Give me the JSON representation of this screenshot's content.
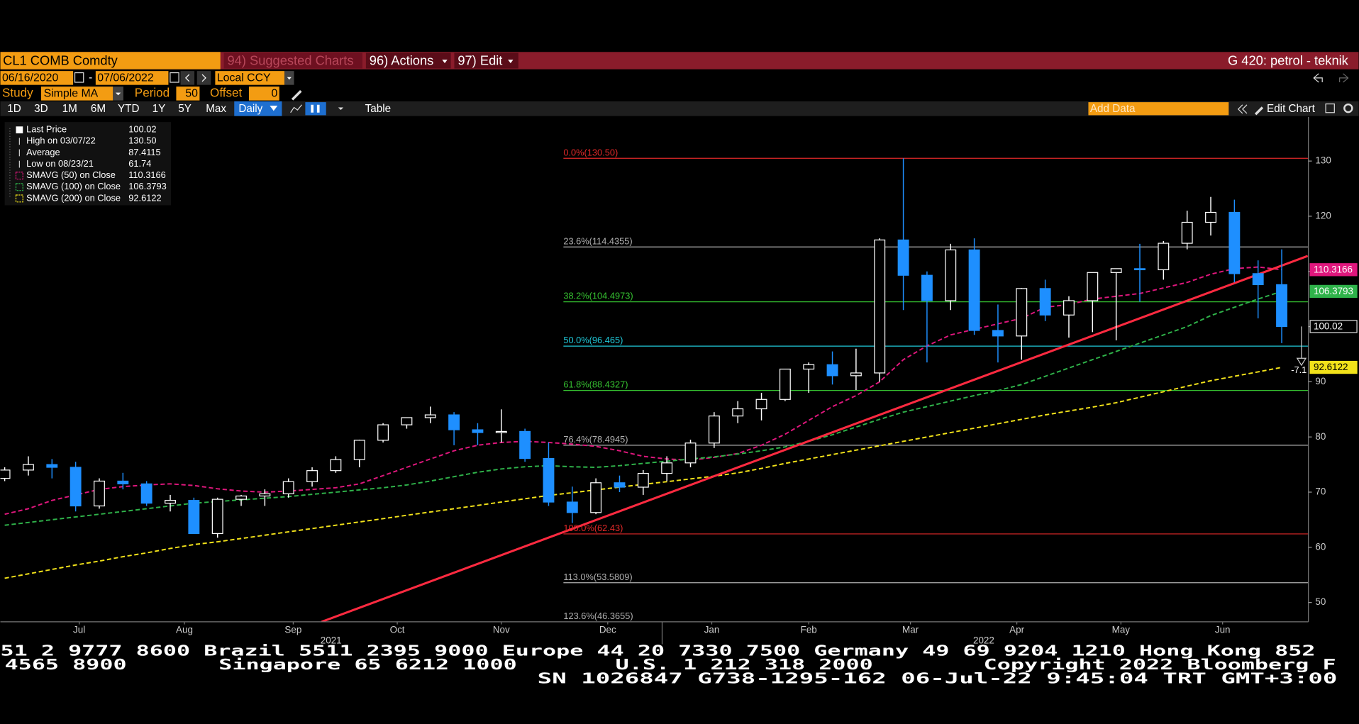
{
  "toolbar": {
    "security": "CL1 COMB Comdty",
    "suggested": "94) Suggested Charts",
    "actions": "96) Actions",
    "edit": "97) Edit",
    "screen": "G 420: petrol - teknik"
  },
  "controls": {
    "start_date": "06/16/2020",
    "date_separator": "-",
    "end_date": "07/06/2022",
    "currency": "Local CCY",
    "study_label": "Study",
    "study": "Simple MA",
    "period_label": "Period",
    "period": "50",
    "offset_label": "Offset",
    "offset": "0"
  },
  "ranges": [
    "1D",
    "3D",
    "1M",
    "6M",
    "YTD",
    "1Y",
    "5Y",
    "Max"
  ],
  "frequency": "Daily",
  "table": "Table",
  "add_data": "Add Data",
  "edit_chart": "Edit Chart",
  "chart_data": {
    "type": "candlestick",
    "categories": [
      null,
      null,
      null,
      null,
      null,
      null,
      null,
      null,
      null,
      null,
      null,
      null,
      null,
      null,
      null,
      null,
      null,
      null,
      null,
      null,
      null,
      null,
      null,
      null,
      null,
      null,
      null,
      null,
      null,
      null,
      null,
      null,
      null,
      null,
      null,
      null,
      null,
      null,
      null,
      null,
      null,
      null,
      null,
      null,
      null,
      null,
      null,
      null,
      null,
      null,
      null,
      null,
      null,
      null,
      null
    ],
    "open": [
      72.5,
      74,
      75,
      74.5,
      67.5,
      72,
      71.5,
      68,
      68.5,
      62.5,
      68.7,
      69.3,
      69.7,
      71.9,
      73.9,
      75.9,
      79.4,
      82.2,
      83.5,
      84,
      81.3,
      80.8,
      81,
      76.1,
      68.2,
      66.3,
      71.7,
      70.9,
      73.4,
      75.3,
      78.9,
      83.8,
      85.1,
      86.8,
      92.3,
      93.1,
      91.1,
      91.6,
      115.7,
      109.3,
      104.7,
      113.9,
      99.3,
      98.3,
      106.9,
      102.1,
      104.7,
      109.8,
      110.5,
      110.3,
      115.1,
      118.9,
      120.7,
      109.6,
      107.6
    ],
    "high": [
      74.5,
      76.5,
      76,
      75.5,
      72.5,
      73.5,
      72,
      69.5,
      69,
      69,
      69.5,
      70.5,
      72.5,
      74.5,
      76.5,
      79.5,
      82.5,
      83.5,
      85.5,
      84.5,
      82.5,
      85,
      81.5,
      79,
      71,
      72.5,
      73,
      74,
      76.5,
      79.5,
      84.5,
      86.5,
      88,
      92,
      93.5,
      95.5,
      96,
      116,
      130.5,
      110,
      115,
      116,
      104,
      107,
      108.5,
      105.5,
      109,
      110.5,
      115,
      115.5,
      121,
      123.5,
      123,
      112,
      114
    ],
    "low": [
      72,
      73,
      72.5,
      66.5,
      67,
      70.5,
      67.5,
      66.5,
      62.5,
      61.74,
      67.5,
      67.5,
      69,
      71,
      73.5,
      74.5,
      79,
      81.5,
      82.5,
      78.5,
      78.5,
      79,
      75.5,
      67.5,
      64.4,
      66,
      70,
      69.5,
      72,
      74.5,
      78,
      82.5,
      83,
      86.5,
      88,
      89.5,
      88.5,
      90,
      103,
      93.5,
      103,
      98.5,
      93.5,
      94,
      101,
      98,
      99,
      97.5,
      104.5,
      108.5,
      114,
      116.5,
      108,
      101.5,
      97
    ],
    "close": [
      74,
      75,
      74.5,
      67.5,
      72,
      71.5,
      68,
      68.5,
      62.5,
      68.7,
      69.3,
      69.7,
      71.9,
      73.9,
      75.9,
      79.4,
      82.2,
      83.5,
      84,
      81.3,
      80.8,
      81,
      76.1,
      68.2,
      66.3,
      71.7,
      70.9,
      73.4,
      75.3,
      78.9,
      83.8,
      85.1,
      86.8,
      92.3,
      93.1,
      91.1,
      91.6,
      115.7,
      109.3,
      104.7,
      113.9,
      99.3,
      98.3,
      106.9,
      102.1,
      104.7,
      109.8,
      110.5,
      110.3,
      115.1,
      118.9,
      120.7,
      109.6,
      107.6,
      100.02
    ],
    "up_color": "#ffffff",
    "down_color": "#1e8fff",
    "series": [
      {
        "name": "SMAVG (50)  on Close",
        "color": "#e0177d",
        "tag_text": "#ffffff",
        "values": [
          66,
          67,
          68.5,
          69.5,
          70.5,
          71,
          71.3,
          71.5,
          71.2,
          70.6,
          70.2,
          70,
          70.2,
          70.5,
          70.8,
          71.5,
          73,
          74.5,
          76,
          77.5,
          78.5,
          79,
          79.2,
          79,
          78.7,
          78.3,
          77.5,
          76.5,
          76,
          75.8,
          76.3,
          77,
          78.5,
          80.5,
          83,
          85.5,
          87.5,
          90,
          94,
          96.5,
          98.5,
          99.5,
          100.5,
          101.5,
          103.5,
          104,
          105,
          105.5,
          106,
          107,
          108,
          109.5,
          110.5,
          110.8,
          110.3166
        ]
      },
      {
        "name": "SMAVG (100)  on Close",
        "color": "#2fb34a",
        "tag_text": "#ffffff",
        "values": [
          64,
          64.5,
          65,
          65.5,
          66,
          66.5,
          67,
          67.5,
          68,
          68.3,
          68.6,
          68.9,
          69.2,
          69.6,
          70,
          70.4,
          70.8,
          71.3,
          72,
          72.8,
          73.6,
          74.2,
          74.6,
          74.8,
          74.6,
          74.5,
          74.8,
          75.2,
          75.6,
          76,
          76.4,
          76.9,
          77.5,
          78.2,
          79.2,
          80.4,
          81.8,
          83.2,
          84.5,
          85.5,
          86.5,
          87.5,
          88.4,
          89.5,
          91,
          92.5,
          94,
          95.5,
          97,
          98.5,
          100,
          102,
          103.5,
          105,
          106.3793
        ]
      },
      {
        "name": "SMAVG (200)  on Close",
        "color": "#f2e21a",
        "tag_text": "#000000",
        "values": [
          54.4,
          55.2,
          56,
          56.8,
          57.5,
          58.3,
          59,
          59.8,
          60.5,
          61,
          61.6,
          62.2,
          62.8,
          63.4,
          64,
          64.6,
          65.2,
          65.8,
          66.4,
          67,
          67.6,
          68.2,
          68.8,
          69.4,
          69.9,
          70.4,
          70.9,
          71.4,
          71.9,
          72.4,
          72.9,
          73.5,
          74.3,
          75.2,
          76,
          76.8,
          77.6,
          78.4,
          79.2,
          80,
          80.8,
          81.6,
          82.4,
          83.2,
          84,
          84.7,
          85.4,
          86.2,
          87.2,
          88.2,
          89.2,
          90.2,
          91,
          91.8,
          92.6122
        ]
      }
    ],
    "legend": {
      "last_price": "Last Price",
      "high": {
        "name": "High on 03/07/22",
        "value": 130.5,
        "value_label": "130.50"
      },
      "average": {
        "name": "Average",
        "value": 87.4115
      },
      "low": {
        "name": "Low on 08/23/21",
        "value": 61.74
      }
    },
    "trendline": {
      "color": "#ff2a40",
      "x": [
        13.4,
        55.1
      ],
      "values": [
        46.5,
        112.8
      ]
    },
    "fib_levels": [
      {
        "value": 130.5,
        "label": "0.0%(130.50)",
        "color": "#e02828"
      },
      {
        "value": 114.4355,
        "label": "23.6%(114.4355)",
        "color": "#b0b0b0"
      },
      {
        "value": 104.4973,
        "label": "38.2%(104.4973)",
        "color": "#35c030"
      },
      {
        "value": 96.465,
        "label": "50.0%(96.465)",
        "color": "#20c8d8"
      },
      {
        "value": 88.4327,
        "label": "61.8%(88.4327)",
        "color": "#35c030"
      },
      {
        "value": 78.4945,
        "label": "76.4%(78.4945)",
        "color": "#b0b0b0"
      },
      {
        "value": 62.43,
        "label": "100.0%(62.43)",
        "color": "#e02828"
      },
      {
        "value": 53.5809,
        "label": "113.0%(53.5809)",
        "color": "#b0b0b0"
      },
      {
        "value": 46.3655,
        "label": "123.6%(46.3655)",
        "color": "#b0b0b0"
      }
    ],
    "annotation": {
      "value": 93,
      "label": "-7.1"
    },
    "xticks": [
      {
        "value": 3.15,
        "label": "Jul"
      },
      {
        "value": 7.6,
        "label": "Aug"
      },
      {
        "value": 12.2,
        "label": "Sep"
      },
      {
        "value": 16.6,
        "label": "Oct"
      },
      {
        "value": 21,
        "label": "Nov"
      },
      {
        "value": 25.5,
        "label": "Dec"
      },
      {
        "value": 29.9,
        "label": "Jan"
      },
      {
        "value": 34,
        "label": "Feb"
      },
      {
        "value": 38.3,
        "label": "Mar"
      },
      {
        "value": 42.8,
        "label": "Apr"
      },
      {
        "value": 47.2,
        "label": "May"
      },
      {
        "value": 51.5,
        "label": "Jun"
      }
    ],
    "year_ticks": [
      {
        "value": 13.8,
        "label": "2021"
      },
      {
        "value": 41.4,
        "label": "2022"
      }
    ],
    "year_boundary": 27.8,
    "ylim": [
      46.5,
      138
    ],
    "yticks": [
      50,
      60,
      70,
      80,
      90,
      100,
      110,
      120,
      130
    ]
  },
  "footer": [
    {
      "text": "51 2 9777 8600 Brazil 5511 2395 9000 Europe 44 20 7330 7500 Germany 49 69 9204 1210 Hong Kong 852"
    },
    {
      "text": "4565 8900"
    },
    {
      "text": "Singapore 65 6212 1000"
    },
    {
      "text": "U.S. 1 212 318 2000"
    },
    {
      "text": "Copyright 2022 Bloomberg F"
    },
    {
      "text": "SN 1026847 G738-1295-162 06-Jul-22   9:45:04 TRT   GMT+3:00"
    }
  ]
}
